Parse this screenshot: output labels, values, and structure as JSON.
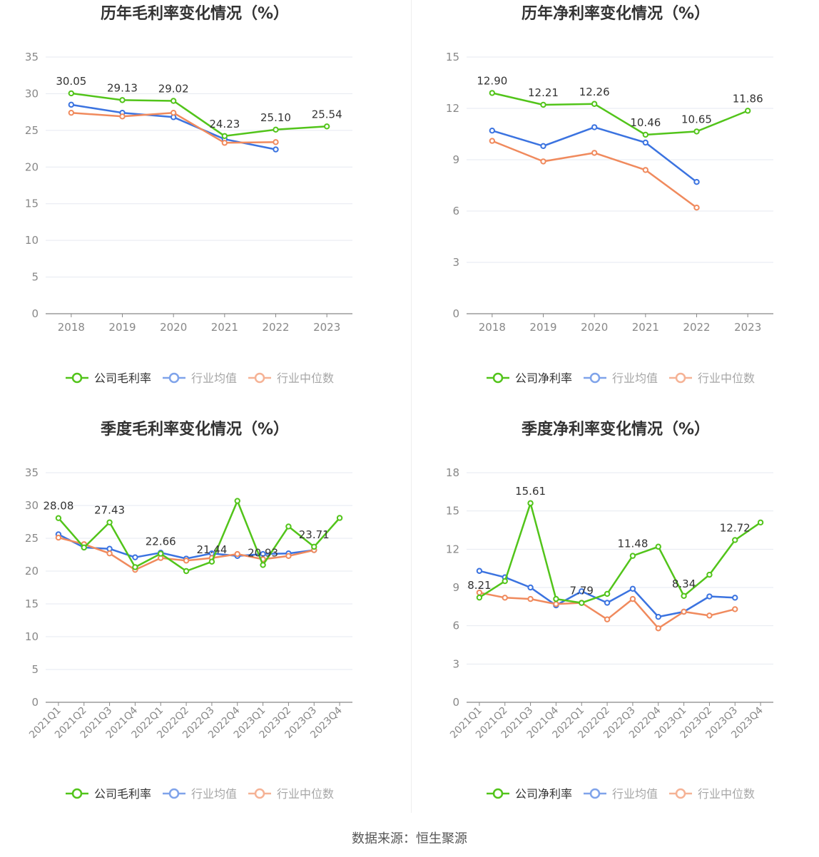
{
  "chart_data": [
    {
      "type": "line",
      "title": "历年毛利率变化情况（%）",
      "categories": [
        "2018",
        "2019",
        "2020",
        "2021",
        "2022",
        "2023"
      ],
      "ylim": [
        0,
        35
      ],
      "yticks": [
        0,
        5,
        10,
        15,
        20,
        25,
        30,
        35
      ],
      "grid": true,
      "legend_position": "bottom",
      "series": [
        {
          "name": "公司毛利率",
          "color": "#52c41a",
          "values": [
            30.05,
            29.13,
            29.02,
            24.23,
            25.1,
            25.54
          ],
          "labels": [
            "30.05",
            "29.13",
            "29.02",
            "24.23",
            "25.10",
            "25.54"
          ]
        },
        {
          "name": "行业均值",
          "color": "#3b73e0",
          "values": [
            28.5,
            27.4,
            26.8,
            23.8,
            22.4,
            null
          ]
        },
        {
          "name": "行业中位数",
          "color": "#f08a5d",
          "values": [
            27.4,
            26.9,
            27.4,
            23.3,
            23.4,
            null
          ]
        }
      ]
    },
    {
      "type": "line",
      "title": "历年净利率变化情况（%）",
      "categories": [
        "2018",
        "2019",
        "2020",
        "2021",
        "2022",
        "2023"
      ],
      "ylim": [
        0,
        15
      ],
      "yticks": [
        0,
        3,
        6,
        9,
        12,
        15
      ],
      "grid": true,
      "legend_position": "bottom",
      "series": [
        {
          "name": "公司净利率",
          "color": "#52c41a",
          "values": [
            12.9,
            12.21,
            12.26,
            10.46,
            10.65,
            11.86
          ],
          "labels": [
            "12.90",
            "12.21",
            "12.26",
            "10.46",
            "10.65",
            "11.86"
          ]
        },
        {
          "name": "行业均值",
          "color": "#3b73e0",
          "values": [
            10.7,
            9.8,
            10.9,
            10.0,
            7.7,
            null
          ]
        },
        {
          "name": "行业中位数",
          "color": "#f08a5d",
          "values": [
            10.1,
            8.9,
            9.4,
            8.4,
            6.2,
            null
          ]
        }
      ]
    },
    {
      "type": "line",
      "title": "季度毛利率变化情况（%）",
      "categories": [
        "2021Q1",
        "2021Q2",
        "2021Q3",
        "2021Q4",
        "2022Q1",
        "2022Q2",
        "2022Q3",
        "2022Q4",
        "2023Q1",
        "2023Q2",
        "2023Q3",
        "2023Q4"
      ],
      "ylim": [
        0,
        35
      ],
      "yticks": [
        0,
        5,
        10,
        15,
        20,
        25,
        30,
        35
      ],
      "grid": true,
      "legend_position": "bottom",
      "series": [
        {
          "name": "公司毛利率",
          "color": "#52c41a",
          "values": [
            28.08,
            23.6,
            27.43,
            20.6,
            22.66,
            20.0,
            21.44,
            30.7,
            20.93,
            26.8,
            23.71,
            28.1
          ],
          "labels": [
            "28.08",
            "",
            "27.43",
            "",
            "22.66",
            "",
            "21.44",
            "",
            "20.93",
            "",
            "23.71",
            ""
          ]
        },
        {
          "name": "行业均值",
          "color": "#3b73e0",
          "values": [
            25.6,
            23.6,
            23.4,
            22.1,
            22.8,
            21.9,
            22.7,
            22.3,
            22.6,
            22.7,
            23.2,
            null
          ]
        },
        {
          "name": "行业中位数",
          "color": "#f08a5d",
          "values": [
            25.1,
            24.1,
            22.7,
            20.2,
            22.0,
            21.6,
            22.0,
            22.6,
            21.8,
            22.3,
            23.2,
            null
          ]
        }
      ]
    },
    {
      "type": "line",
      "title": "季度净利率变化情况（%）",
      "categories": [
        "2021Q1",
        "2021Q2",
        "2021Q3",
        "2021Q4",
        "2022Q1",
        "2022Q2",
        "2022Q3",
        "2022Q4",
        "2023Q1",
        "2023Q2",
        "2023Q3",
        "2023Q4"
      ],
      "ylim": [
        0,
        18
      ],
      "yticks": [
        0,
        3,
        6,
        9,
        12,
        15,
        18
      ],
      "grid": true,
      "legend_position": "bottom",
      "series": [
        {
          "name": "公司净利率",
          "color": "#52c41a",
          "values": [
            8.21,
            9.5,
            15.61,
            8.1,
            7.79,
            8.5,
            11.48,
            12.2,
            8.34,
            10.0,
            12.72,
            14.1
          ],
          "labels": [
            "8.21",
            "",
            "15.61",
            "",
            "7.79",
            "",
            "11.48",
            "",
            "8.34",
            "",
            "12.72",
            ""
          ]
        },
        {
          "name": "行业均值",
          "color": "#3b73e0",
          "values": [
            10.3,
            9.8,
            9.0,
            7.6,
            8.7,
            7.8,
            8.9,
            6.7,
            7.1,
            8.3,
            8.2,
            null
          ]
        },
        {
          "name": "行业中位数",
          "color": "#f08a5d",
          "values": [
            8.6,
            8.2,
            8.1,
            7.7,
            7.8,
            6.5,
            8.1,
            5.8,
            7.1,
            6.8,
            7.3,
            null
          ]
        }
      ]
    }
  ],
  "footer": {
    "source": "数据来源：恒生聚源"
  }
}
